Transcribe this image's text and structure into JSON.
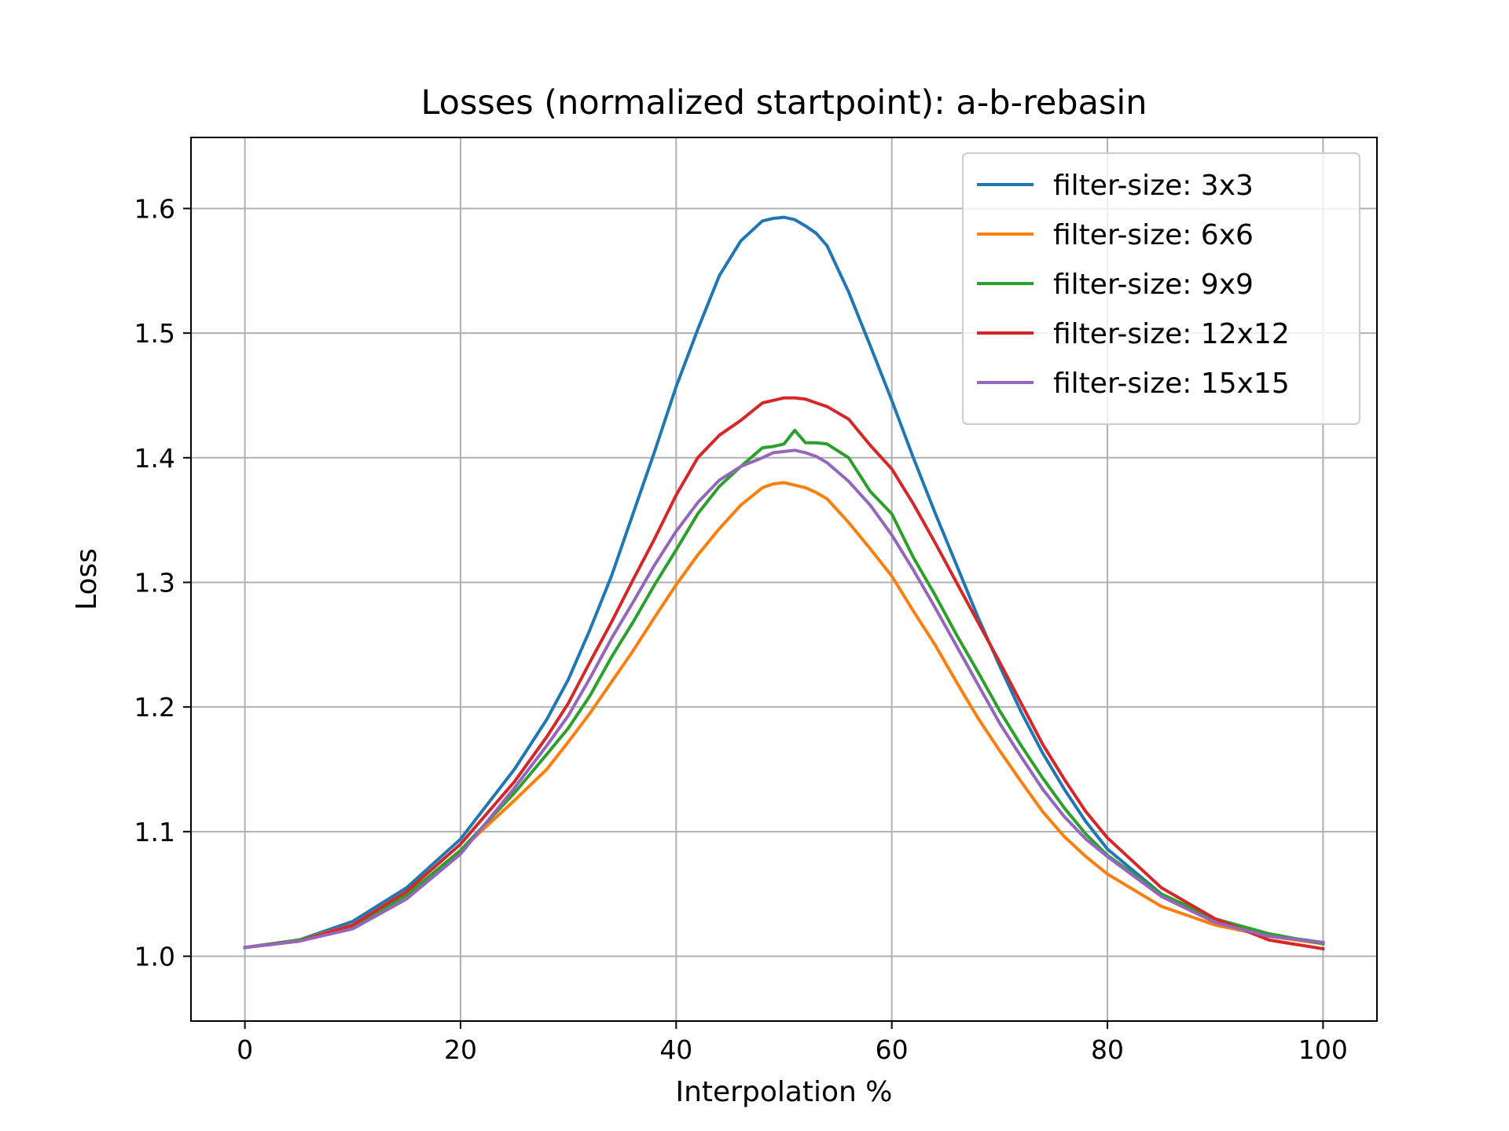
{
  "chart_data": {
    "type": "line",
    "title": "Losses (normalized startpoint): a-b-rebasin",
    "xlabel": "Interpolation %",
    "ylabel": "Loss",
    "xlim": [
      -5,
      105
    ],
    "ylim": [
      0.948,
      1.657
    ],
    "xticks": [
      0,
      20,
      40,
      60,
      80,
      100
    ],
    "yticks": [
      1.0,
      1.1,
      1.2,
      1.3,
      1.4,
      1.5,
      1.6
    ],
    "xtick_labels": [
      "0",
      "20",
      "40",
      "60",
      "80",
      "100"
    ],
    "ytick_labels": [
      "1.0",
      "1.1",
      "1.2",
      "1.3",
      "1.4",
      "1.5",
      "1.6"
    ],
    "grid": true,
    "legend_position": "top-right",
    "series": [
      {
        "name": "filter-size: 3x3",
        "color": "#1f77b4",
        "x": [
          0,
          5,
          10,
          15,
          20,
          25,
          28,
          30,
          32,
          34,
          36,
          38,
          40,
          42,
          44,
          46,
          48,
          49,
          50,
          51,
          52,
          53,
          54,
          56,
          58,
          60,
          62,
          64,
          66,
          68,
          70,
          72,
          74,
          76,
          78,
          80,
          85,
          90,
          95,
          100
        ],
        "y": [
          1.007,
          1.013,
          1.028,
          1.055,
          1.094,
          1.15,
          1.19,
          1.222,
          1.262,
          1.305,
          1.355,
          1.405,
          1.457,
          1.503,
          1.546,
          1.574,
          1.59,
          1.592,
          1.593,
          1.591,
          1.586,
          1.58,
          1.57,
          1.533,
          1.49,
          1.446,
          1.4,
          1.356,
          1.314,
          1.272,
          1.233,
          1.196,
          1.163,
          1.134,
          1.108,
          1.086,
          1.05,
          1.027,
          1.017,
          1.011
        ]
      },
      {
        "name": "filter-size: 6x6",
        "color": "#ff7f0e",
        "x": [
          0,
          5,
          10,
          15,
          20,
          25,
          28,
          30,
          32,
          34,
          36,
          38,
          40,
          42,
          44,
          46,
          48,
          49,
          50,
          51,
          52,
          53,
          54,
          56,
          58,
          60,
          62,
          64,
          66,
          68,
          70,
          72,
          74,
          76,
          78,
          80,
          85,
          90,
          95,
          100
        ],
        "y": [
          1.007,
          1.013,
          1.025,
          1.049,
          1.085,
          1.125,
          1.15,
          1.172,
          1.195,
          1.22,
          1.245,
          1.272,
          1.298,
          1.322,
          1.343,
          1.362,
          1.376,
          1.379,
          1.38,
          1.378,
          1.376,
          1.372,
          1.367,
          1.348,
          1.327,
          1.305,
          1.277,
          1.25,
          1.22,
          1.191,
          1.165,
          1.14,
          1.116,
          1.096,
          1.08,
          1.066,
          1.04,
          1.025,
          1.016,
          1.01
        ]
      },
      {
        "name": "filter-size: 9x9",
        "color": "#2ca02c",
        "x": [
          0,
          5,
          10,
          15,
          20,
          25,
          28,
          30,
          32,
          34,
          36,
          38,
          40,
          42,
          44,
          46,
          48,
          49,
          50,
          51,
          52,
          53,
          54,
          56,
          58,
          60,
          62,
          64,
          66,
          68,
          70,
          72,
          74,
          76,
          78,
          80,
          85,
          90,
          95,
          100
        ],
        "y": [
          1.007,
          1.013,
          1.024,
          1.049,
          1.085,
          1.131,
          1.162,
          1.183,
          1.209,
          1.24,
          1.268,
          1.298,
          1.326,
          1.355,
          1.377,
          1.393,
          1.408,
          1.409,
          1.411,
          1.422,
          1.412,
          1.412,
          1.411,
          1.4,
          1.373,
          1.355,
          1.32,
          1.29,
          1.258,
          1.228,
          1.197,
          1.169,
          1.143,
          1.119,
          1.098,
          1.081,
          1.05,
          1.03,
          1.018,
          1.01
        ]
      },
      {
        "name": "filter-size: 12x12",
        "color": "#d62728",
        "x": [
          0,
          5,
          10,
          15,
          20,
          25,
          28,
          30,
          32,
          34,
          36,
          38,
          40,
          42,
          44,
          46,
          48,
          49,
          50,
          51,
          52,
          53,
          54,
          56,
          58,
          60,
          62,
          64,
          66,
          68,
          70,
          72,
          74,
          76,
          78,
          80,
          85,
          90,
          95,
          100
        ],
        "y": [
          1.007,
          1.012,
          1.025,
          1.052,
          1.09,
          1.14,
          1.176,
          1.203,
          1.236,
          1.268,
          1.302,
          1.335,
          1.37,
          1.4,
          1.418,
          1.43,
          1.444,
          1.446,
          1.448,
          1.448,
          1.447,
          1.444,
          1.441,
          1.431,
          1.41,
          1.391,
          1.363,
          1.332,
          1.3,
          1.268,
          1.236,
          1.203,
          1.17,
          1.142,
          1.116,
          1.095,
          1.055,
          1.03,
          1.013,
          1.006
        ]
      },
      {
        "name": "filter-size: 15x15",
        "color": "#9467bd",
        "x": [
          0,
          5,
          10,
          15,
          20,
          25,
          28,
          30,
          32,
          34,
          36,
          38,
          40,
          42,
          44,
          46,
          48,
          49,
          50,
          51,
          52,
          53,
          54,
          56,
          58,
          60,
          62,
          64,
          66,
          68,
          70,
          72,
          74,
          76,
          78,
          80,
          85,
          90,
          95,
          100
        ],
        "y": [
          1.007,
          1.012,
          1.022,
          1.046,
          1.082,
          1.135,
          1.169,
          1.193,
          1.223,
          1.255,
          1.284,
          1.314,
          1.341,
          1.364,
          1.382,
          1.393,
          1.4,
          1.404,
          1.405,
          1.406,
          1.404,
          1.401,
          1.396,
          1.381,
          1.362,
          1.338,
          1.31,
          1.28,
          1.249,
          1.218,
          1.187,
          1.16,
          1.134,
          1.112,
          1.094,
          1.08,
          1.048,
          1.027,
          1.016,
          1.011
        ]
      }
    ]
  }
}
